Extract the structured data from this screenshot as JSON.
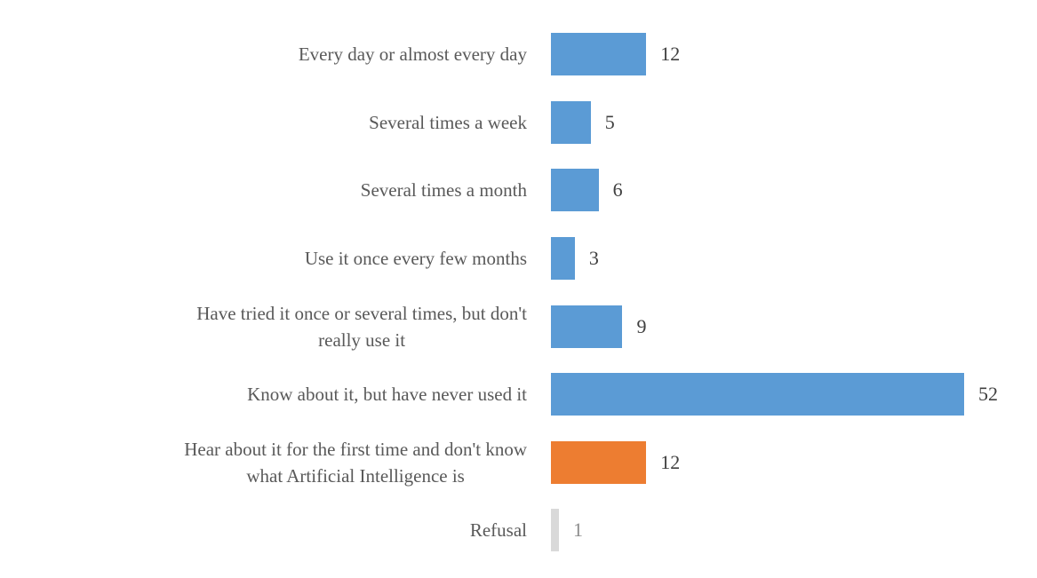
{
  "chart_data": {
    "type": "bar",
    "orientation": "horizontal",
    "title": "",
    "xlabel": "",
    "ylabel": "",
    "grid": false,
    "legend": false,
    "data_labels": true,
    "xlim": [
      0,
      52
    ],
    "categories": [
      "Every day or almost every day",
      "Several times a week",
      "Several times a month",
      "Use it once every few months",
      "Have tried it once or several times, but don't\nreally use it",
      "Know about it, but have never used it",
      "Hear about it for the first time and don't know\nwhat Artificial Intelligence is",
      "Refusal"
    ],
    "values": [
      12,
      5,
      6,
      3,
      9,
      52,
      12,
      1
    ],
    "bar_colors": [
      "#5B9BD5",
      "#5B9BD5",
      "#5B9BD5",
      "#5B9BD5",
      "#5B9BD5",
      "#5B9BD5",
      "#ED7D31",
      "#D9D9D9"
    ],
    "value_label_colors": [
      "#404040",
      "#404040",
      "#404040",
      "#404040",
      "#404040",
      "#404040",
      "#404040",
      "#8C8C8C"
    ]
  },
  "style": {
    "background": "#FFFFFF",
    "category_label_color": "#595959",
    "accent_blue": "#5B9BD5",
    "accent_orange": "#ED7D31",
    "neutral_gray_bar": "#D9D9D9",
    "muted_value_color": "#8C8C8C"
  }
}
